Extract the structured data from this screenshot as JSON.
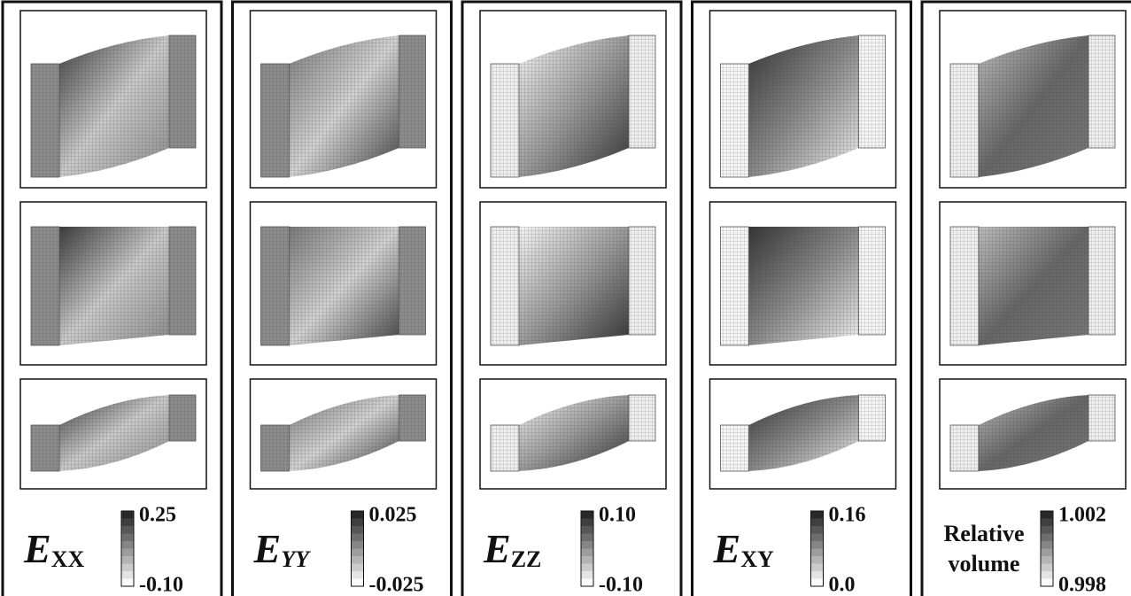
{
  "panels": [
    {
      "symbol": "E",
      "subscript": "XX",
      "max_label": "0.25",
      "min_label": "-0.10"
    },
    {
      "symbol": "E",
      "subscript": "YY",
      "max_label": "0.025",
      "min_label": "-0.025"
    },
    {
      "symbol": "E",
      "subscript": "ZZ",
      "max_label": "0.10",
      "min_label": "-0.10"
    },
    {
      "symbol": "E",
      "subscript": "XY",
      "max_label": "0.16",
      "min_label": "0.0"
    },
    {
      "label_lines": [
        "Relative",
        "volume"
      ],
      "max_label": "1.002",
      "min_label": "0.998"
    }
  ]
}
